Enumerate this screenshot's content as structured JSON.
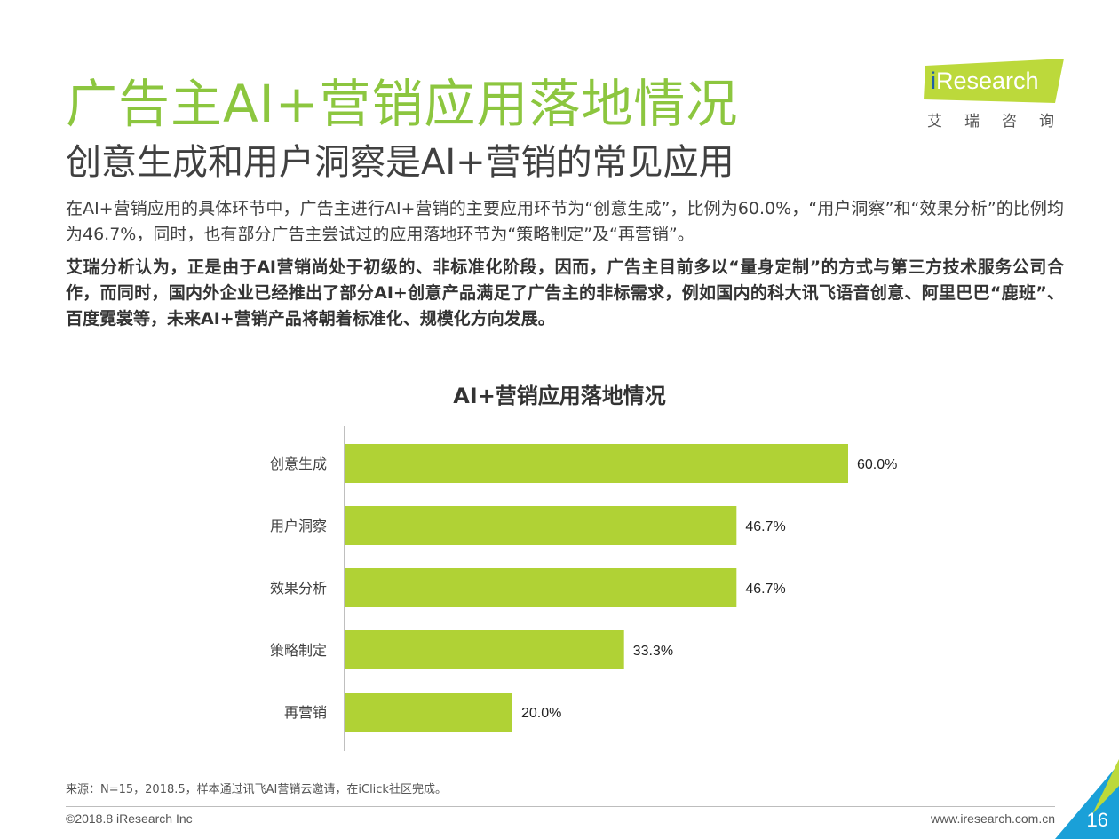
{
  "header": {
    "title": "广告主AI+营销应用落地情况",
    "subtitle": "创意生成和用户洞察是AI+营销的常见应用"
  },
  "logo": {
    "word_i": "i",
    "word_rest": "Research",
    "chinese": "艾瑞咨询"
  },
  "body": {
    "paragraph1": "在AI+营销应用的具体环节中，广告主进行AI+营销的主要应用环节为“创意生成”，比例为60.0%，“用户洞察”和“效果分析”的比例均为46.7%，同时，也有部分广告主尝试过的应用落地环节为“策略制定”及“再营销”。",
    "paragraph2": "艾瑞分析认为，正是由于AI营销尚处于初级的、非标准化阶段，因而，广告主目前多以“量身定制”的方式与第三方技术服务公司合作，而同时，国内外企业已经推出了部分AI+创意产品满足了广告主的非标需求，例如国内的科大讯飞语音创意、阿里巴巴“鹿班”、百度霓裳等，未来AI+营销产品将朝着标准化、规模化方向发展。"
  },
  "chart_data": {
    "type": "bar",
    "orientation": "horizontal",
    "title": "AI+营销应用落地情况",
    "categories": [
      "创意生成",
      "用户洞察",
      "效果分析",
      "策略制定",
      "再营销"
    ],
    "values": [
      60.0,
      46.7,
      46.7,
      33.3,
      20.0
    ],
    "value_labels": [
      "60.0%",
      "46.7%",
      "46.7%",
      "33.3%",
      "20.0%"
    ],
    "xlim": [
      0,
      60
    ],
    "grid": false,
    "legend": "none",
    "bar_color": "#b0d235"
  },
  "footer": {
    "source": "来源：N=15，2018.5，样本通过讯飞AI营销云邀请，在iClick社区完成。",
    "copyright": "©2018.8 iResearch Inc",
    "website": "www.iresearch.com.cn",
    "page_number": "16"
  },
  "colors": {
    "accent_green": "#8cc63f",
    "logo_green": "#bcd93b",
    "logo_blue": "#1d5fa6",
    "corner_blue": "#1aa0d8"
  }
}
